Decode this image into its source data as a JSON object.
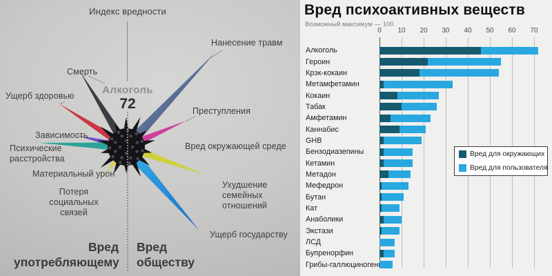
{
  "left_panel": {
    "title": "Индекс вредности",
    "center": {
      "substance": "Алкоголь",
      "index": "72"
    },
    "labels": {
      "injury": "Нанесение травм",
      "death": "Смерть",
      "health": "Ущерб здоровью",
      "dependence": "Зависимость",
      "mental": "Психические\nрасстройства",
      "material": "Материальный урон",
      "social": "Потеря\nсоциальных связей",
      "crime": "Преступления",
      "environment": "Вред окружающей среде",
      "family": "Ухудшение\nсемейных отношений",
      "state": "Ущерб государству"
    },
    "footer": {
      "left": "Вред\nупотребляющему",
      "right": "Вред\nобществу"
    },
    "spikes": [
      {
        "name": "death",
        "color": "#3c3c44"
      },
      {
        "name": "injury",
        "color": "#4d5a78"
      },
      {
        "name": "health",
        "color": "#cb3742"
      },
      {
        "name": "crime",
        "color": "#cf3f9d"
      },
      {
        "name": "dependence",
        "color": "#6f4fc2"
      },
      {
        "name": "mental",
        "color": "#2aa398"
      },
      {
        "name": "material",
        "color": "#e3cf3f"
      },
      {
        "name": "environment",
        "color": "#ccd23c"
      },
      {
        "name": "family",
        "color": "#2b8fd8"
      }
    ]
  },
  "right_panel": {
    "title": "Вред психоактивных веществ",
    "subtitle": "Возможный максимум — 100",
    "legend": [
      {
        "label": "Вред для окружающих"
      },
      {
        "label": "Вред для пользователя"
      }
    ]
  },
  "chart_data": {
    "type": "bar",
    "orientation": "horizontal",
    "stacked": true,
    "title": "Вред психоактивных веществ",
    "subtitle": "Возможный максимум — 100",
    "xlim": [
      0,
      75
    ],
    "xticks": [
      0,
      10,
      20,
      30,
      40,
      50,
      60,
      70
    ],
    "grid": true,
    "legend_position": "middle-right",
    "categories": [
      "Алкоголь",
      "Героин",
      "Крэк-кокаин",
      "Метамфетамин",
      "Кокаин",
      "Табак",
      "Амфетамин",
      "Каннабис",
      "GHB",
      "Бензодиазепины",
      "Кетамин",
      "Метадон",
      "Мефедрон",
      "Бутан",
      "Кат",
      "Анаболики",
      "Экстази",
      "ЛСД",
      "Бупренорфин",
      "Грибы-галлюциногены"
    ],
    "series": [
      {
        "name": "Вред для окружающих",
        "color": "#165a70",
        "values": [
          46,
          22,
          18,
          2,
          8,
          10,
          5,
          9,
          2,
          2,
          2,
          4,
          1,
          1,
          1,
          2,
          1,
          0,
          2,
          0
        ]
      },
      {
        "name": "Вред для пользователя",
        "color": "#29a8e0",
        "values": [
          26,
          33,
          36,
          31,
          19,
          16,
          18,
          12,
          17,
          13,
          13,
          10,
          12,
          10,
          8,
          8,
          8,
          7,
          5,
          6
        ]
      }
    ],
    "totals": [
      72,
      55,
      54,
      33,
      27,
      26,
      23,
      21,
      19,
      15,
      15,
      14,
      13,
      11,
      9,
      10,
      9,
      7,
      7,
      6
    ]
  }
}
